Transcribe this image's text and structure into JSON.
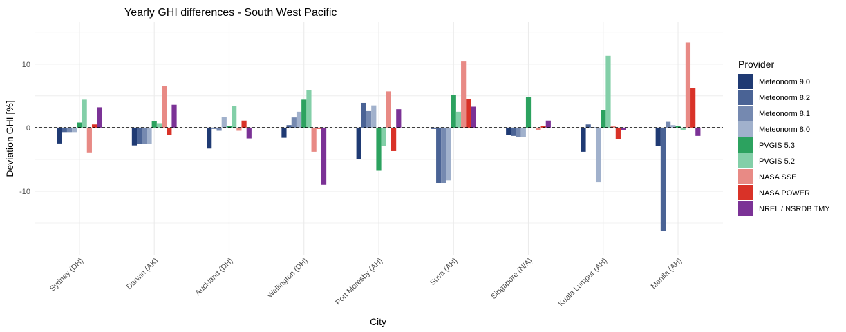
{
  "chart_data": {
    "type": "bar",
    "title": "Yearly GHI differences - South West Pacific",
    "xlabel": "City",
    "ylabel": "Deviation GHI [%]",
    "ylim": [
      -20.1,
      16.6
    ],
    "yticks": [
      -10,
      0,
      10
    ],
    "grid": true,
    "reference_line": {
      "y": 0,
      "style": "dashed"
    },
    "legend": {
      "title": "Provider",
      "placement": "right"
    },
    "categories": [
      "Sydney (DH)",
      "Darwin (AK)",
      "Auckland (DH)",
      "Wellington (DH)",
      "Port Moresby (AH)",
      "Suva (AH)",
      "Singapore (N/A)",
      "Kuala Lumpur (AH)",
      "Manila (AH)"
    ],
    "series": [
      {
        "name": "Meteonorm 9.0",
        "color": "#1f3a73",
        "values": [
          -2.5,
          -2.8,
          -3.3,
          -1.6,
          -5.0,
          -0.2,
          -1.2,
          -3.8,
          -2.9
        ]
      },
      {
        "name": "Meteonorm 8.2",
        "color": "#4a6395",
        "values": [
          -0.7,
          -2.6,
          -0.2,
          0.4,
          3.9,
          -8.7,
          -1.3,
          0.5,
          -16.3
        ]
      },
      {
        "name": "Meteonorm 8.1",
        "color": "#7589b0",
        "values": [
          -0.7,
          -2.6,
          -0.5,
          1.6,
          2.6,
          -8.7,
          -1.5,
          0.05,
          0.9
        ]
      },
      {
        "name": "Meteonorm 8.0",
        "color": "#a1b1cc",
        "values": [
          -0.7,
          -2.6,
          1.7,
          2.5,
          3.5,
          -8.3,
          -1.5,
          -8.6,
          0.4
        ]
      },
      {
        "name": "PVGIS 5.3",
        "color": "#2ca25f",
        "values": [
          0.8,
          1.0,
          0.3,
          4.4,
          -6.8,
          5.2,
          4.8,
          2.8,
          0.2
        ]
      },
      {
        "name": "PVGIS 5.2",
        "color": "#83cfa8",
        "values": [
          4.4,
          0.7,
          3.4,
          5.9,
          -2.9,
          2.5,
          0,
          11.3,
          -0.4
        ]
      },
      {
        "name": "NASA SSE",
        "color": "#e88a85",
        "values": [
          -3.9,
          6.6,
          -0.5,
          -3.8,
          5.7,
          10.4,
          -0.4,
          0.3,
          13.4
        ]
      },
      {
        "name": "NASA POWER",
        "color": "#d93228",
        "values": [
          0.5,
          -1.1,
          1.1,
          -0.2,
          -3.7,
          4.5,
          0.3,
          -1.8,
          6.2
        ]
      },
      {
        "name": "NREL / NSRDB TMY",
        "color": "#7b3296",
        "values": [
          3.2,
          3.6,
          -1.7,
          -9.0,
          2.9,
          3.3,
          1.1,
          -0.4,
          -1.3
        ]
      }
    ]
  }
}
